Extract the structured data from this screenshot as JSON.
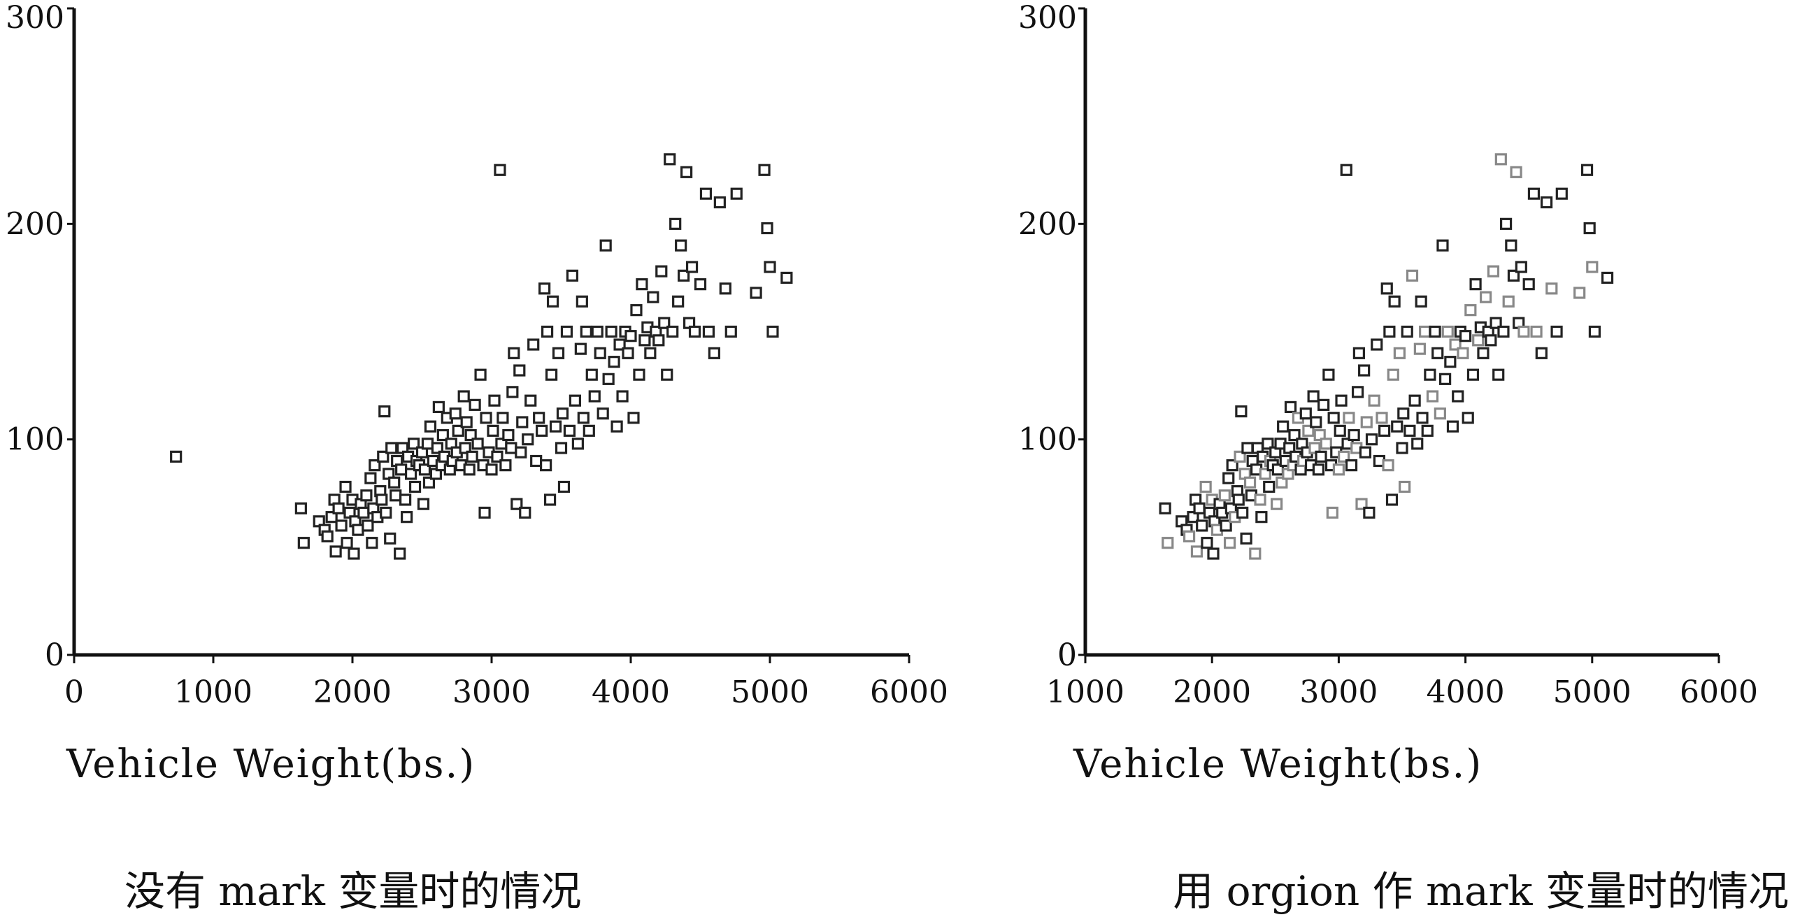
{
  "chart_data": [
    {
      "type": "scatter",
      "xlabel": "Vehicle Weight(bs.)",
      "ylabel": "",
      "xlim": [
        0,
        6000
      ],
      "ylim": [
        0,
        300
      ],
      "xticks": [
        "0",
        "1000",
        "2000",
        "3000",
        "4000",
        "5000",
        "6000"
      ],
      "yticks": [
        "0",
        "100",
        "200",
        "300"
      ],
      "grid": false,
      "caption": "没有 mark 变量时的情况",
      "points": [
        [
          732,
          92
        ],
        [
          1630,
          68
        ],
        [
          1650,
          52
        ],
        [
          1760,
          62
        ],
        [
          1800,
          58
        ],
        [
          1820,
          55
        ],
        [
          1850,
          64
        ],
        [
          1870,
          72
        ],
        [
          1880,
          48
        ],
        [
          1900,
          68
        ],
        [
          1920,
          60
        ],
        [
          1950,
          78
        ],
        [
          1960,
          52
        ],
        [
          1980,
          66
        ],
        [
          2000,
          72
        ],
        [
          2010,
          47
        ],
        [
          2020,
          62
        ],
        [
          2040,
          58
        ],
        [
          2060,
          70
        ],
        [
          2080,
          66
        ],
        [
          2100,
          74
        ],
        [
          2110,
          60
        ],
        [
          2130,
          82
        ],
        [
          2140,
          52
        ],
        [
          2150,
          68
        ],
        [
          2160,
          88
        ],
        [
          2180,
          64
        ],
        [
          2200,
          76
        ],
        [
          2210,
          72
        ],
        [
          2220,
          92
        ],
        [
          2230,
          113
        ],
        [
          2240,
          66
        ],
        [
          2260,
          84
        ],
        [
          2270,
          54
        ],
        [
          2280,
          96
        ],
        [
          2300,
          80
        ],
        [
          2310,
          74
        ],
        [
          2320,
          90
        ],
        [
          2340,
          47
        ],
        [
          2350,
          86
        ],
        [
          2360,
          96
        ],
        [
          2380,
          72
        ],
        [
          2390,
          64
        ],
        [
          2400,
          92
        ],
        [
          2420,
          84
        ],
        [
          2440,
          98
        ],
        [
          2450,
          78
        ],
        [
          2460,
          90
        ],
        [
          2480,
          88
        ],
        [
          2500,
          94
        ],
        [
          2510,
          70
        ],
        [
          2520,
          86
        ],
        [
          2540,
          98
        ],
        [
          2550,
          80
        ],
        [
          2560,
          106
        ],
        [
          2580,
          90
        ],
        [
          2600,
          84
        ],
        [
          2610,
          96
        ],
        [
          2620,
          115
        ],
        [
          2640,
          88
        ],
        [
          2650,
          102
        ],
        [
          2660,
          92
        ],
        [
          2680,
          110
        ],
        [
          2700,
          86
        ],
        [
          2710,
          98
        ],
        [
          2720,
          90
        ],
        [
          2740,
          112
        ],
        [
          2750,
          94
        ],
        [
          2760,
          104
        ],
        [
          2780,
          88
        ],
        [
          2800,
          120
        ],
        [
          2810,
          96
        ],
        [
          2820,
          108
        ],
        [
          2840,
          86
        ],
        [
          2850,
          102
        ],
        [
          2860,
          92
        ],
        [
          2880,
          116
        ],
        [
          2900,
          98
        ],
        [
          2920,
          130
        ],
        [
          2940,
          88
        ],
        [
          2950,
          66
        ],
        [
          2960,
          110
        ],
        [
          2980,
          94
        ],
        [
          3000,
          86
        ],
        [
          3010,
          104
        ],
        [
          3020,
          118
        ],
        [
          3040,
          92
        ],
        [
          3060,
          225
        ],
        [
          3070,
          98
        ],
        [
          3080,
          110
        ],
        [
          3100,
          88
        ],
        [
          3120,
          102
        ],
        [
          3140,
          96
        ],
        [
          3150,
          122
        ],
        [
          3160,
          140
        ],
        [
          3180,
          70
        ],
        [
          3200,
          132
        ],
        [
          3210,
          94
        ],
        [
          3220,
          108
        ],
        [
          3240,
          66
        ],
        [
          3260,
          100
        ],
        [
          3280,
          118
        ],
        [
          3300,
          144
        ],
        [
          3320,
          90
        ],
        [
          3340,
          110
        ],
        [
          3360,
          104
        ],
        [
          3380,
          170
        ],
        [
          3390,
          88
        ],
        [
          3400,
          150
        ],
        [
          3420,
          72
        ],
        [
          3430,
          130
        ],
        [
          3440,
          164
        ],
        [
          3460,
          106
        ],
        [
          3480,
          140
        ],
        [
          3500,
          96
        ],
        [
          3510,
          112
        ],
        [
          3520,
          78
        ],
        [
          3540,
          150
        ],
        [
          3560,
          104
        ],
        [
          3580,
          176
        ],
        [
          3600,
          118
        ],
        [
          3620,
          98
        ],
        [
          3640,
          142
        ],
        [
          3650,
          164
        ],
        [
          3660,
          110
        ],
        [
          3680,
          150
        ],
        [
          3700,
          104
        ],
        [
          3720,
          130
        ],
        [
          3740,
          120
        ],
        [
          3760,
          150
        ],
        [
          3780,
          140
        ],
        [
          3800,
          112
        ],
        [
          3820,
          190
        ],
        [
          3840,
          128
        ],
        [
          3860,
          150
        ],
        [
          3880,
          136
        ],
        [
          3900,
          106
        ],
        [
          3920,
          144
        ],
        [
          3940,
          120
        ],
        [
          3960,
          150
        ],
        [
          3980,
          140
        ],
        [
          4000,
          148
        ],
        [
          4020,
          110
        ],
        [
          4040,
          160
        ],
        [
          4060,
          130
        ],
        [
          4080,
          172
        ],
        [
          4100,
          146
        ],
        [
          4120,
          152
        ],
        [
          4140,
          140
        ],
        [
          4160,
          166
        ],
        [
          4180,
          150
        ],
        [
          4200,
          146
        ],
        [
          4220,
          178
        ],
        [
          4240,
          154
        ],
        [
          4260,
          130
        ],
        [
          4280,
          230
        ],
        [
          4300,
          150
        ],
        [
          4320,
          200
        ],
        [
          4340,
          164
        ],
        [
          4360,
          190
        ],
        [
          4380,
          176
        ],
        [
          4400,
          224
        ],
        [
          4420,
          154
        ],
        [
          4440,
          180
        ],
        [
          4460,
          150
        ],
        [
          4500,
          172
        ],
        [
          4540,
          214
        ],
        [
          4560,
          150
        ],
        [
          4600,
          140
        ],
        [
          4640,
          210
        ],
        [
          4680,
          170
        ],
        [
          4720,
          150
        ],
        [
          4760,
          214
        ],
        [
          4900,
          168
        ],
        [
          4960,
          225
        ],
        [
          4980,
          198
        ],
        [
          5000,
          180
        ],
        [
          5020,
          150
        ],
        [
          5120,
          175
        ]
      ]
    },
    {
      "type": "scatter",
      "xlabel": "Vehicle Weight(bs.)",
      "ylabel": "",
      "xlim": [
        1000,
        6000
      ],
      "ylim": [
        0,
        300
      ],
      "xticks": [
        "1000",
        "2000",
        "3000",
        "4000",
        "5000",
        "6000"
      ],
      "yticks": [
        "0",
        "100",
        "200",
        "300"
      ],
      "grid": false,
      "caption": "用 orgion 作 mark 变量时的情况",
      "points": [
        [
          1630,
          68
        ],
        [
          1650,
          52
        ],
        [
          1760,
          62
        ],
        [
          1800,
          58
        ],
        [
          1820,
          55
        ],
        [
          1850,
          64
        ],
        [
          1870,
          72
        ],
        [
          1880,
          48
        ],
        [
          1900,
          68
        ],
        [
          1920,
          60
        ],
        [
          1950,
          78
        ],
        [
          1960,
          52
        ],
        [
          1980,
          66
        ],
        [
          2000,
          72
        ],
        [
          2010,
          47
        ],
        [
          2020,
          62
        ],
        [
          2040,
          58
        ],
        [
          2060,
          70
        ],
        [
          2080,
          66
        ],
        [
          2100,
          74
        ],
        [
          2110,
          60
        ],
        [
          2130,
          82
        ],
        [
          2140,
          52
        ],
        [
          2150,
          68
        ],
        [
          2160,
          88
        ],
        [
          2180,
          64
        ],
        [
          2200,
          76
        ],
        [
          2210,
          72
        ],
        [
          2220,
          92
        ],
        [
          2230,
          113
        ],
        [
          2240,
          66
        ],
        [
          2260,
          84
        ],
        [
          2270,
          54
        ],
        [
          2280,
          96
        ],
        [
          2300,
          80
        ],
        [
          2310,
          74
        ],
        [
          2320,
          90
        ],
        [
          2340,
          47
        ],
        [
          2350,
          86
        ],
        [
          2360,
          96
        ],
        [
          2380,
          72
        ],
        [
          2390,
          64
        ],
        [
          2400,
          92
        ],
        [
          2420,
          84
        ],
        [
          2440,
          98
        ],
        [
          2450,
          78
        ],
        [
          2460,
          90
        ],
        [
          2480,
          88
        ],
        [
          2500,
          94
        ],
        [
          2510,
          70
        ],
        [
          2520,
          86
        ],
        [
          2540,
          98
        ],
        [
          2550,
          80
        ],
        [
          2560,
          106
        ],
        [
          2580,
          90
        ],
        [
          2600,
          84
        ],
        [
          2610,
          96
        ],
        [
          2620,
          115
        ],
        [
          2640,
          88
        ],
        [
          2650,
          102
        ],
        [
          2660,
          92
        ],
        [
          2680,
          110
        ],
        [
          2700,
          86
        ],
        [
          2710,
          98
        ],
        [
          2720,
          90
        ],
        [
          2740,
          112
        ],
        [
          2750,
          94
        ],
        [
          2760,
          104
        ],
        [
          2780,
          88
        ],
        [
          2800,
          120
        ],
        [
          2810,
          96
        ],
        [
          2820,
          108
        ],
        [
          2840,
          86
        ],
        [
          2850,
          102
        ],
        [
          2860,
          92
        ],
        [
          2880,
          116
        ],
        [
          2900,
          98
        ],
        [
          2920,
          130
        ],
        [
          2940,
          88
        ],
        [
          2950,
          66
        ],
        [
          2960,
          110
        ],
        [
          2980,
          94
        ],
        [
          3000,
          86
        ],
        [
          3010,
          104
        ],
        [
          3020,
          118
        ],
        [
          3040,
          92
        ],
        [
          3060,
          225
        ],
        [
          3070,
          98
        ],
        [
          3080,
          110
        ],
        [
          3100,
          88
        ],
        [
          3120,
          102
        ],
        [
          3140,
          96
        ],
        [
          3150,
          122
        ],
        [
          3160,
          140
        ],
        [
          3180,
          70
        ],
        [
          3200,
          132
        ],
        [
          3210,
          94
        ],
        [
          3220,
          108
        ],
        [
          3240,
          66
        ],
        [
          3260,
          100
        ],
        [
          3280,
          118
        ],
        [
          3300,
          144
        ],
        [
          3320,
          90
        ],
        [
          3340,
          110
        ],
        [
          3360,
          104
        ],
        [
          3380,
          170
        ],
        [
          3390,
          88
        ],
        [
          3400,
          150
        ],
        [
          3420,
          72
        ],
        [
          3430,
          130
        ],
        [
          3440,
          164
        ],
        [
          3460,
          106
        ],
        [
          3480,
          140
        ],
        [
          3500,
          96
        ],
        [
          3510,
          112
        ],
        [
          3520,
          78
        ],
        [
          3540,
          150
        ],
        [
          3560,
          104
        ],
        [
          3580,
          176
        ],
        [
          3600,
          118
        ],
        [
          3620,
          98
        ],
        [
          3640,
          142
        ],
        [
          3650,
          164
        ],
        [
          3660,
          110
        ],
        [
          3680,
          150
        ],
        [
          3700,
          104
        ],
        [
          3720,
          130
        ],
        [
          3740,
          120
        ],
        [
          3760,
          150
        ],
        [
          3780,
          140
        ],
        [
          3800,
          112
        ],
        [
          3820,
          190
        ],
        [
          3840,
          128
        ],
        [
          3860,
          150
        ],
        [
          3880,
          136
        ],
        [
          3900,
          106
        ],
        [
          3920,
          144
        ],
        [
          3940,
          120
        ],
        [
          3960,
          150
        ],
        [
          3980,
          140
        ],
        [
          4000,
          148
        ],
        [
          4020,
          110
        ],
        [
          4040,
          160
        ],
        [
          4060,
          130
        ],
        [
          4080,
          172
        ],
        [
          4100,
          146
        ],
        [
          4120,
          152
        ],
        [
          4140,
          140
        ],
        [
          4160,
          166
        ],
        [
          4180,
          150
        ],
        [
          4200,
          146
        ],
        [
          4220,
          178
        ],
        [
          4240,
          154
        ],
        [
          4260,
          130
        ],
        [
          4280,
          230
        ],
        [
          4300,
          150
        ],
        [
          4320,
          200
        ],
        [
          4340,
          164
        ],
        [
          4360,
          190
        ],
        [
          4380,
          176
        ],
        [
          4400,
          224
        ],
        [
          4420,
          154
        ],
        [
          4440,
          180
        ],
        [
          4460,
          150
        ],
        [
          4500,
          172
        ],
        [
          4540,
          214
        ],
        [
          4560,
          150
        ],
        [
          4600,
          140
        ],
        [
          4640,
          210
        ],
        [
          4680,
          170
        ],
        [
          4720,
          150
        ],
        [
          4760,
          214
        ],
        [
          4900,
          168
        ],
        [
          4960,
          225
        ],
        [
          4980,
          198
        ],
        [
          5000,
          180
        ],
        [
          5020,
          150
        ],
        [
          5120,
          175
        ]
      ]
    }
  ]
}
